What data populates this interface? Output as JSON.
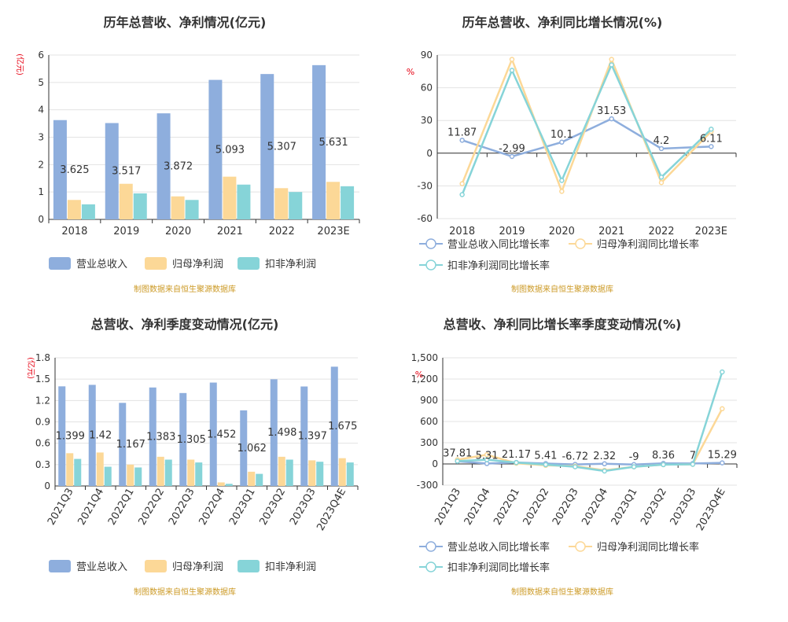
{
  "colors": {
    "revenue": "#8eaedd",
    "parent_profit": "#fcd897",
    "deducted_profit": "#86d4d8",
    "grid": "#e3e3e3",
    "axis": "#333333",
    "unit": "#e60012",
    "source": "#cc9a26"
  },
  "source_note": "制图数据来自恒生聚源数据库",
  "chart_data": [
    {
      "id": "annual_amount",
      "type": "bar",
      "title": "历年总营收、净利情况(亿元)",
      "unit": "(亿元)",
      "categories": [
        "2018",
        "2019",
        "2020",
        "2021",
        "2022",
        "2023E"
      ],
      "ylim": [
        0,
        6
      ],
      "yticks": [
        0,
        1,
        2,
        3,
        4,
        5,
        6
      ],
      "grid": true,
      "legend_position": "bottom",
      "label_series": 0,
      "labels": [
        "3.625",
        "3.517",
        "3.872",
        "5.093",
        "5.307",
        "5.631"
      ],
      "series": [
        {
          "name": "营业总收入",
          "color_key": "revenue",
          "values": [
            3.625,
            3.517,
            3.872,
            5.093,
            5.307,
            5.631
          ]
        },
        {
          "name": "归母净利润",
          "color_key": "parent_profit",
          "values": [
            0.71,
            1.3,
            0.84,
            1.56,
            1.14,
            1.37
          ]
        },
        {
          "name": "扣非净利润",
          "color_key": "deducted_profit",
          "values": [
            0.55,
            0.95,
            0.71,
            1.27,
            1.0,
            1.21
          ]
        }
      ]
    },
    {
      "id": "annual_growth",
      "type": "line",
      "title": "历年总营收、净利同比增长情况(%)",
      "unit": "%",
      "categories": [
        "2018",
        "2019",
        "2020",
        "2021",
        "2022",
        "2023E"
      ],
      "ylim": [
        -60,
        90
      ],
      "yticks": [
        -60,
        -30,
        0,
        30,
        60,
        90
      ],
      "grid": true,
      "legend_position": "bottom",
      "label_series": 0,
      "labels": [
        "11.87",
        "-2.99",
        "10.1",
        "31.53",
        "4.2",
        "6.11"
      ],
      "series": [
        {
          "name": "营业总收入同比增长率",
          "color_key": "revenue",
          "values": [
            11.87,
            -2.99,
            10.1,
            31.53,
            4.2,
            6.11
          ]
        },
        {
          "name": "归母净利润同比增长率",
          "color_key": "parent_profit",
          "values": [
            -28,
            86,
            -35,
            86,
            -27,
            20
          ]
        },
        {
          "name": "扣非净利润同比增长率",
          "color_key": "deducted_profit",
          "values": [
            -38,
            76,
            -25,
            81,
            -22,
            22
          ]
        }
      ]
    },
    {
      "id": "quarterly_amount",
      "type": "bar",
      "title": "总营收、净利季度变动情况(亿元)",
      "unit": "(亿元)",
      "categories": [
        "2021Q3",
        "2021Q4",
        "2022Q1",
        "2022Q2",
        "2022Q3",
        "2022Q4",
        "2023Q1",
        "2023Q2",
        "2023Q3",
        "2023Q4E"
      ],
      "ylim": [
        0,
        1.8
      ],
      "yticks": [
        0,
        0.3,
        0.6,
        0.9,
        1.2,
        1.5,
        1.8
      ],
      "grid": true,
      "legend_position": "bottom",
      "label_series": 0,
      "labels": [
        "1.399",
        "1.42",
        "1.167",
        "1.383",
        "1.305",
        "1.452",
        "1.062",
        "1.498",
        "1.397",
        "1.675"
      ],
      "series": [
        {
          "name": "营业总收入",
          "color_key": "revenue",
          "values": [
            1.399,
            1.42,
            1.167,
            1.383,
            1.305,
            1.452,
            1.062,
            1.498,
            1.397,
            1.675
          ]
        },
        {
          "name": "归母净利润",
          "color_key": "parent_profit",
          "values": [
            0.46,
            0.47,
            0.3,
            0.41,
            0.37,
            0.05,
            0.2,
            0.41,
            0.36,
            0.39
          ]
        },
        {
          "name": "扣非净利润",
          "color_key": "deducted_profit",
          "values": [
            0.38,
            0.27,
            0.26,
            0.37,
            0.33,
            0.03,
            0.17,
            0.37,
            0.34,
            0.33
          ]
        }
      ]
    },
    {
      "id": "quarterly_growth",
      "type": "line",
      "title": "总营收、净利同比增长率季度变动情况(%)",
      "unit": "%",
      "categories": [
        "2021Q3",
        "2021Q4",
        "2022Q1",
        "2022Q2",
        "2022Q3",
        "2022Q4",
        "2023Q1",
        "2023Q2",
        "2023Q3",
        "2023Q4E"
      ],
      "ylim": [
        -300,
        1500
      ],
      "yticks": [
        -300,
        0,
        300,
        600,
        900,
        1200,
        1500
      ],
      "ytick_labels": [
        "-300",
        "0",
        "300",
        "600",
        "900",
        "1,200",
        "1,500"
      ],
      "grid": true,
      "legend_position": "bottom",
      "label_series": 0,
      "labels": [
        "37.81",
        "5.31",
        "21.17",
        "5.41",
        "-6.72",
        "2.32",
        "-9",
        "8.36",
        "7",
        "15.29"
      ],
      "series": [
        {
          "name": "营业总收入同比增长率",
          "color_key": "revenue",
          "values": [
            37.81,
            5.31,
            21.17,
            5.41,
            -6.72,
            2.32,
            -9,
            8.36,
            7,
            15.29
          ]
        },
        {
          "name": "归母净利润同比增长率",
          "color_key": "parent_profit",
          "values": [
            60,
            130,
            10,
            -20,
            -30,
            -90,
            -40,
            -10,
            -5,
            780
          ]
        },
        {
          "name": "扣非净利润同比增长率",
          "color_key": "deducted_profit",
          "values": [
            40,
            60,
            20,
            -10,
            -40,
            -100,
            -40,
            -10,
            -5,
            1300
          ]
        }
      ]
    }
  ]
}
